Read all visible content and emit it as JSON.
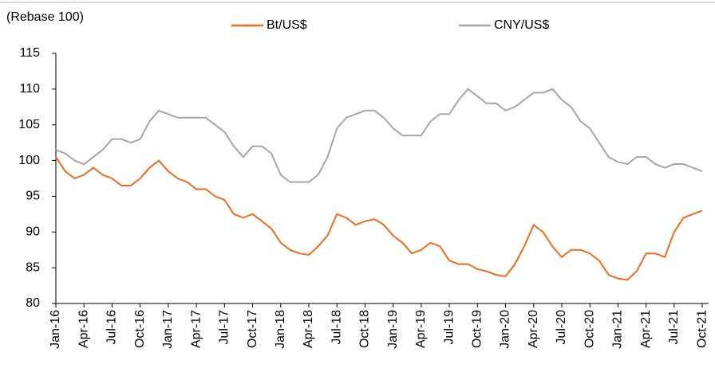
{
  "chart_data": {
    "type": "line",
    "ylabel": "(Rebase 100)",
    "categories": [
      "Jan-16",
      null,
      null,
      "Apr-16",
      null,
      null,
      "Jul-16",
      null,
      null,
      "Oct-16",
      null,
      null,
      "Jan-17",
      null,
      null,
      "Apr-17",
      null,
      null,
      "Jul-17",
      null,
      null,
      "Oct-17",
      null,
      null,
      "Jan-18",
      null,
      null,
      "Apr-18",
      null,
      null,
      "Jul-18",
      null,
      null,
      "Oct-18",
      null,
      null,
      "Jan-19",
      null,
      null,
      "Apr-19",
      null,
      null,
      "Jul-19",
      null,
      null,
      "Oct-19",
      null,
      null,
      "Jan-20",
      null,
      null,
      "Apr-20",
      null,
      null,
      "Jul-20",
      null,
      null,
      "Oct-20",
      null,
      null,
      "Jan-21",
      null,
      null,
      "Apr-21",
      null,
      null,
      "Jul-21",
      null,
      null,
      "Oct-21"
    ],
    "series": [
      {
        "name": "Bt/US$",
        "color": "#f26a1b",
        "values": [
          100.5,
          98.5,
          97.5,
          98,
          99,
          98,
          97.5,
          96.5,
          96.5,
          97.5,
          99,
          100,
          98.5,
          97.5,
          97,
          96,
          96,
          95,
          94.5,
          92.5,
          92,
          92.5,
          91.5,
          90.5,
          88.5,
          87.5,
          87,
          86.8,
          88,
          89.5,
          92.5,
          92,
          91,
          91.5,
          91.8,
          91,
          89.5,
          88.5,
          87,
          87.5,
          88.5,
          88,
          86,
          85.5,
          85.5,
          84.8,
          84.5,
          84,
          83.8,
          85.5,
          88,
          91,
          90,
          88,
          86.5,
          87.5,
          87.5,
          87,
          86,
          84,
          83.5,
          83.3,
          84.5,
          87,
          87,
          86.5,
          90,
          92,
          92.5,
          93
        ]
      },
      {
        "name": "CNY/US$",
        "color": "#a6a6a6",
        "values": [
          101.5,
          101,
          100,
          99.5,
          100.5,
          101.5,
          103,
          103,
          102.5,
          103,
          105.5,
          107,
          106.5,
          106,
          106,
          106,
          106,
          105,
          104,
          102,
          100.5,
          102,
          102,
          101,
          98,
          97,
          97,
          97,
          98,
          100.5,
          104.5,
          106,
          106.5,
          107,
          107,
          106,
          104.5,
          103.5,
          103.5,
          103.5,
          105.5,
          106.5,
          106.5,
          108.5,
          110,
          109,
          108,
          108,
          107,
          107.5,
          108.5,
          109.5,
          109.5,
          110,
          108.5,
          107.5,
          105.5,
          104.5,
          102.5,
          100.5,
          99.8,
          99.5,
          100.5,
          100.5,
          99.5,
          99,
          99.5,
          99.5,
          99,
          98.5
        ]
      }
    ],
    "ylim": [
      80,
      115
    ],
    "yticks": [
      80,
      85,
      90,
      95,
      100,
      105,
      110,
      115
    ]
  }
}
